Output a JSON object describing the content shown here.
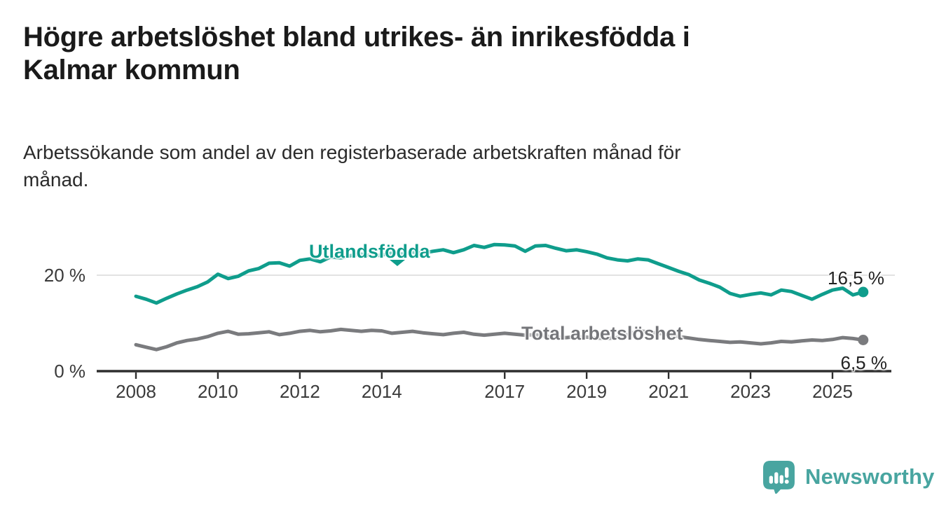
{
  "header": {
    "title": "Högre arbetslöshet bland utrikes- än inrikesfödda i Kalmar kommun",
    "title_lines": [
      "Högre arbetslöshet bland utrikes- än inrikesfödda i",
      "Kalmar kommun"
    ],
    "subtitle_lines": [
      "Arbetssökande som andel av den registerbaserade arbetskraften månad för",
      "månad."
    ]
  },
  "footer": {
    "brand": "Newsworthy",
    "brand_color": "#48a5a0"
  },
  "chart_data": {
    "type": "line",
    "title": "Högre arbetslöshet bland utrikes- än inrikesfödda i Kalmar kommun",
    "subtitle": "Arbetssökande som andel av den registerbaserade arbetskraften månad för månad.",
    "xlabel": "",
    "ylabel": "",
    "x_unit": "year (monthly data)",
    "y_unit": "%",
    "x_start": 2008,
    "x_step": 0.25,
    "xlim": [
      2007.0,
      2026.6
    ],
    "ylim": [
      0,
      29
    ],
    "grid": "horizontal at 20 % only",
    "legend_position": "labels on lines",
    "x_ticks": [
      {
        "year": 2008,
        "label": "2008"
      },
      {
        "year": 2010,
        "label": "2010"
      },
      {
        "year": 2012,
        "label": "2012"
      },
      {
        "year": 2014,
        "label": "2014"
      },
      {
        "year": 2017,
        "label": "2017"
      },
      {
        "year": 2019,
        "label": "2019"
      },
      {
        "year": 2021,
        "label": "2021"
      },
      {
        "year": 2023,
        "label": "2023"
      },
      {
        "year": 2025,
        "label": "2025"
      }
    ],
    "y_ticks": [
      {
        "value": 0,
        "label": "0 %",
        "grid": false
      },
      {
        "value": 20,
        "label": "20 %",
        "grid": true
      }
    ],
    "series": [
      {
        "name": "Utlandsfödda",
        "color": "#0f9d8c",
        "end_label": "16,5 %",
        "end_value": 16.5,
        "values": [
          15.6,
          15.0,
          14.2,
          15.2,
          16.1,
          16.9,
          17.6,
          18.6,
          20.2,
          19.3,
          19.8,
          20.9,
          21.4,
          22.5,
          22.6,
          21.9,
          23.1,
          23.4,
          22.8,
          23.8,
          23.6,
          24.1,
          24.4,
          24.0,
          24.2,
          24.6,
          24.4,
          24.8,
          24.6,
          25.0,
          25.3,
          24.7,
          25.3,
          26.2,
          25.8,
          26.4,
          26.3,
          26.1,
          25.0,
          26.1,
          26.2,
          25.6,
          25.1,
          25.3,
          24.9,
          24.4,
          23.6,
          23.2,
          23.0,
          23.4,
          23.2,
          22.4,
          21.6,
          20.8,
          20.1,
          19.0,
          18.3,
          17.5,
          16.2,
          15.6,
          16.0,
          16.3,
          15.9,
          16.9,
          16.6,
          15.8,
          15.0,
          16.0,
          16.9,
          17.3,
          15.9,
          16.5
        ]
      },
      {
        "name": "Total arbetslöshet",
        "color": "#7a7b7e",
        "end_label": "6,5 %",
        "end_value": 6.5,
        "values": [
          5.5,
          5.0,
          4.5,
          5.1,
          5.9,
          6.4,
          6.7,
          7.2,
          7.9,
          8.3,
          7.7,
          7.8,
          8.0,
          8.2,
          7.6,
          7.9,
          8.3,
          8.5,
          8.2,
          8.4,
          8.7,
          8.5,
          8.3,
          8.5,
          8.4,
          7.9,
          8.1,
          8.3,
          8.0,
          7.8,
          7.6,
          7.9,
          8.1,
          7.7,
          7.5,
          7.7,
          7.9,
          7.7,
          7.5,
          7.6,
          7.3,
          7.1,
          7.0,
          7.2,
          7.1,
          6.9,
          6.8,
          7.0,
          7.6,
          8.4,
          8.2,
          7.9,
          7.6,
          7.2,
          6.9,
          6.6,
          6.4,
          6.2,
          6.0,
          6.1,
          5.9,
          5.7,
          5.9,
          6.2,
          6.1,
          6.3,
          6.5,
          6.4,
          6.6,
          7.0,
          6.8,
          6.5
        ]
      }
    ],
    "colors": {
      "gridline": "#d9d9d9",
      "axis": "#2e2e2e",
      "tick_text": "#3a3a3a",
      "value_label_text": "#222222"
    }
  }
}
